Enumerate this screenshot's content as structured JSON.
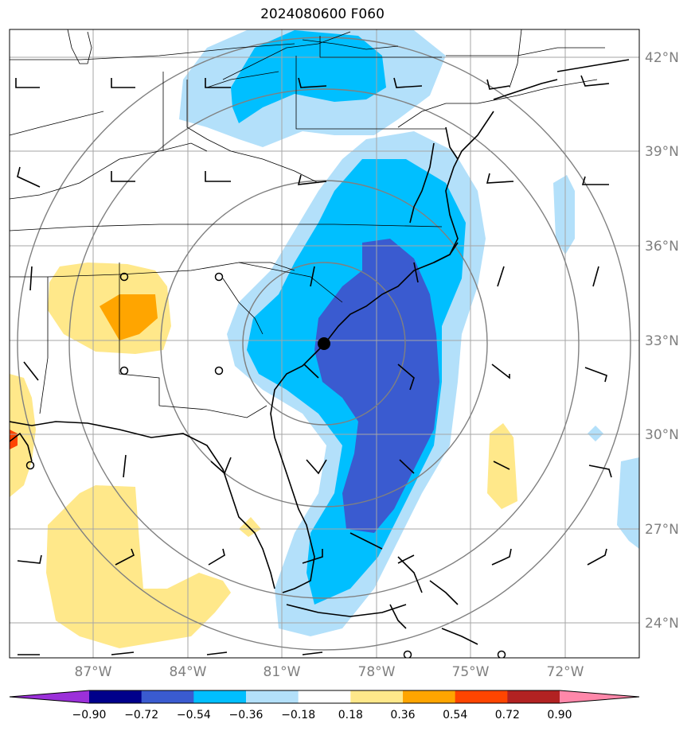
{
  "title": "2024080600 F060",
  "colors": {
    "fill_neg_low": "#b3e0fa",
    "fill_neg_mid": "#00bfff",
    "fill_neg_high": "#3a5bd0",
    "fill_pos_low": "#ffe88a",
    "fill_pos_mid": "#ffa500",
    "fill_pos_high": "#ff4500",
    "grid": "#a6a6a6",
    "ring": "#808080",
    "coast": "#000000"
  },
  "lat_labels": [
    "42°N",
    "39°N",
    "36°N",
    "33°N",
    "30°N",
    "27°N",
    "24°N"
  ],
  "lon_labels": [
    "87°W",
    "84°W",
    "81°W",
    "78°W",
    "75°W",
    "72°W"
  ],
  "colorbar": {
    "colors": [
      "#9b30d9",
      "#00008b",
      "#3a5bd0",
      "#00bfff",
      "#b3e0fa",
      "#ffffff",
      "#ffe88a",
      "#ffa500",
      "#ff4500",
      "#b22222",
      "#ff88aa"
    ],
    "labels": [
      "−0.90",
      "−0.72",
      "−0.54",
      "−0.36",
      "−0.18",
      "0.18",
      "0.36",
      "0.54",
      "0.72",
      "0.90"
    ]
  },
  "center_marker": "storm-center"
}
